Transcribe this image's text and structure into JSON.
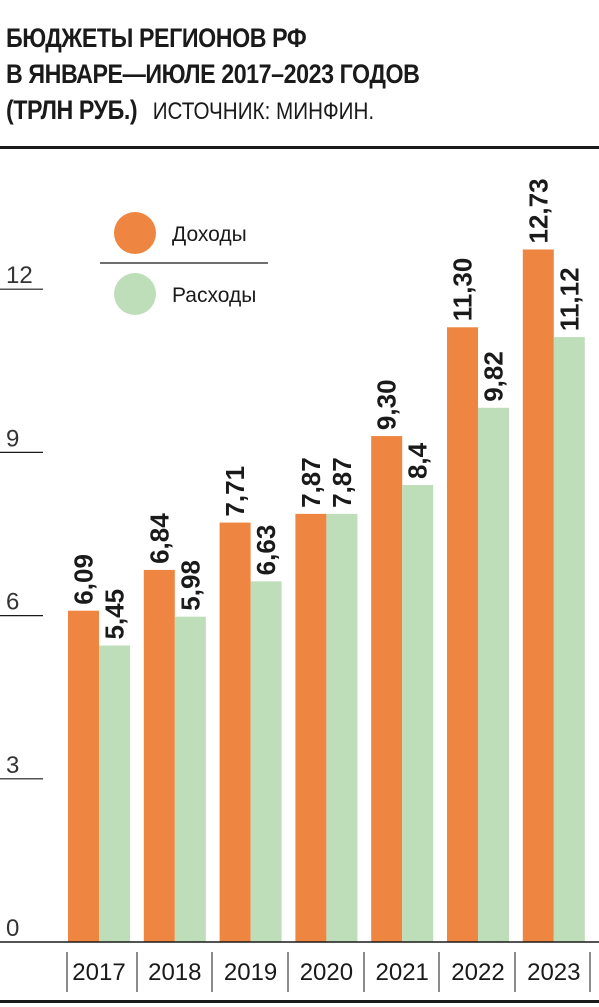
{
  "header": {
    "title_line1": "БЮДЖЕТЫ РЕГИОНОВ РФ",
    "title_line2": "В ЯНВАРЕ—ИЮЛЕ 2017–2023 ГОДОВ",
    "title_line3": "(ТРЛН РУБ.)",
    "source": "ИСТОЧНИК: МИНФИН."
  },
  "colors": {
    "income": "#EE8540",
    "expense": "#BEDEBA",
    "axis": "#1a1a1a"
  },
  "chart_data": {
    "type": "bar",
    "categories": [
      "2017",
      "2018",
      "2019",
      "2020",
      "2021",
      "2022",
      "2023"
    ],
    "series": [
      {
        "name": "Доходы",
        "values": [
          6.09,
          6.84,
          7.71,
          7.87,
          9.3,
          11.3,
          12.73
        ],
        "labels": [
          "6,09",
          "6,84",
          "7,71",
          "7,87",
          "9,30",
          "11,30",
          "12,73"
        ]
      },
      {
        "name": "Расходы",
        "values": [
          5.45,
          5.98,
          6.63,
          7.87,
          8.4,
          9.82,
          11.12
        ],
        "labels": [
          "5,45",
          "5,98",
          "6,63",
          "7,87",
          "8,4",
          "9,82",
          "11,12"
        ]
      }
    ],
    "yticks": [
      0,
      3,
      6,
      9,
      12
    ],
    "ylim": [
      0,
      13
    ],
    "legend_position": "top-left",
    "grid": false
  }
}
